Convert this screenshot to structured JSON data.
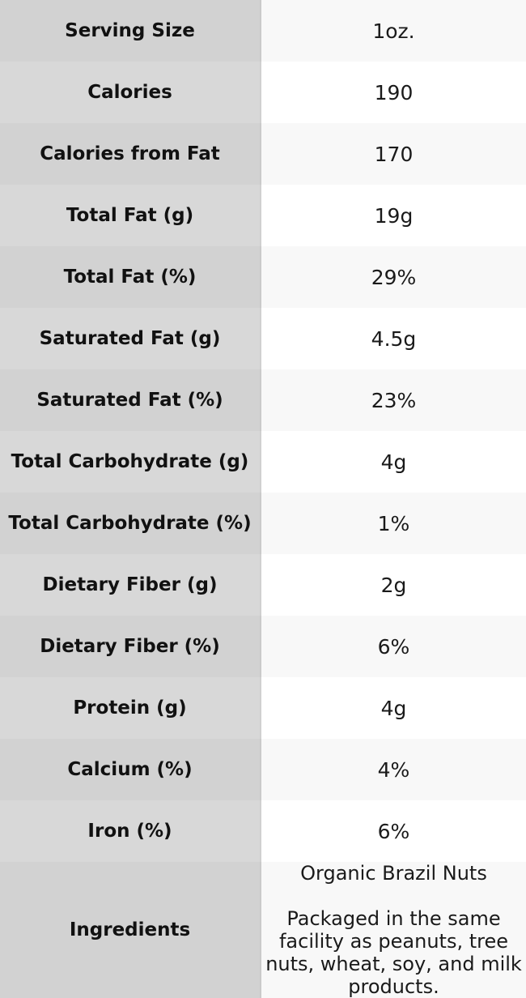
{
  "chart_data": {
    "type": "table",
    "description": "Nutrition facts table, label column left, value column right",
    "rows": [
      [
        "Serving Size",
        "1oz."
      ],
      [
        "Calories",
        "190"
      ],
      [
        "Calories from Fat",
        "170"
      ],
      [
        "Total Fat (g)",
        "19g"
      ],
      [
        "Total Fat (%)",
        "29%"
      ],
      [
        "Saturated Fat (g)",
        "4.5g"
      ],
      [
        "Saturated Fat (%)",
        "23%"
      ],
      [
        "Total Carbohydrate (g)",
        "4g"
      ],
      [
        "Total Carbohydrate (%)",
        "1%"
      ],
      [
        "Dietary Fiber (g)",
        "2g"
      ],
      [
        "Dietary Fiber (%)",
        "6%"
      ],
      [
        "Protein (g)",
        "4g"
      ],
      [
        "Calcium (%)",
        "4%"
      ],
      [
        "Iron (%)",
        "6%"
      ]
    ],
    "ingredients_row": {
      "label": "Ingredients",
      "lines": [
        "Organic Brazil Nuts",
        "Packaged in the same facility as peanuts, tree nuts, wheat, soy, and milk products."
      ]
    }
  },
  "colors": {
    "value_row_odd_bg": "#f8f8f8",
    "value_row_even_bg": "#ffffff",
    "label_cell_odd_bg": "#d3d3d3",
    "label_cell_even_bg": "#d9d9d9",
    "text": "#1a1a1a"
  }
}
